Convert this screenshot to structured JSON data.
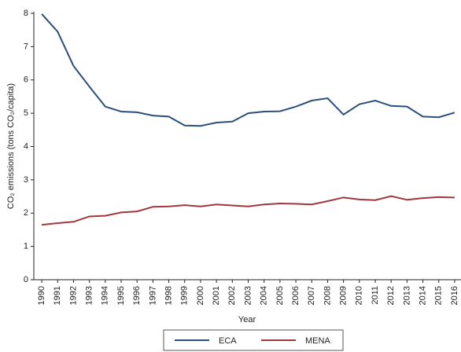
{
  "chart_data": {
    "type": "line",
    "x": [
      1990,
      1991,
      1992,
      1993,
      1994,
      1995,
      1996,
      1997,
      1998,
      1999,
      2000,
      2001,
      2002,
      2003,
      2004,
      2005,
      2006,
      2007,
      2008,
      2009,
      2010,
      2011,
      2012,
      2013,
      2014,
      2015,
      2016
    ],
    "series": [
      {
        "name": "ECA",
        "color": "#2b4f7a",
        "values": [
          7.98,
          7.45,
          6.42,
          5.8,
          5.2,
          5.05,
          5.03,
          4.93,
          4.9,
          4.63,
          4.62,
          4.72,
          4.75,
          5.0,
          5.05,
          5.06,
          5.2,
          5.38,
          5.45,
          4.96,
          5.27,
          5.38,
          5.22,
          5.2,
          4.9,
          4.88,
          5.02
        ]
      },
      {
        "name": "MENA",
        "color": "#a0373a",
        "values": [
          1.65,
          1.7,
          1.74,
          1.9,
          1.92,
          2.02,
          2.05,
          2.19,
          2.2,
          2.24,
          2.2,
          2.26,
          2.23,
          2.2,
          2.26,
          2.29,
          2.28,
          2.26,
          2.36,
          2.47,
          2.41,
          2.39,
          2.51,
          2.4,
          2.45,
          2.48,
          2.47
        ]
      }
    ],
    "xlabel": "Year",
    "ylabel": "CO₂ emissions (tons CO₂/capita)",
    "xlim": [
      1989.5,
      2016.4
    ],
    "xticks": [
      1990,
      1991,
      1992,
      1993,
      1994,
      1995,
      1996,
      1997,
      1998,
      1999,
      2000,
      2001,
      2002,
      2003,
      2004,
      2005,
      2006,
      2007,
      2008,
      2009,
      2010,
      2011,
      2012,
      2013,
      2014,
      2015,
      2016
    ],
    "ylim": [
      0,
      8
    ],
    "yticks": [
      0,
      1,
      2,
      3,
      4,
      5,
      6,
      7,
      8
    ],
    "legend": "bottom"
  }
}
